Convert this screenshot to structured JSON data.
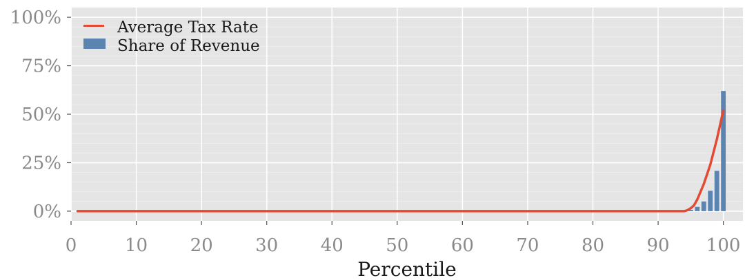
{
  "chart_data": {
    "type": "bar",
    "title": "",
    "xlabel": "Percentile",
    "ylabel": "",
    "xlim": [
      0,
      103
    ],
    "ylim": [
      -5,
      105
    ],
    "x_ticks": [
      0,
      10,
      20,
      30,
      40,
      50,
      60,
      70,
      80,
      90,
      100
    ],
    "x_tick_labels": [
      "0",
      "10",
      "20",
      "30",
      "40",
      "50",
      "60",
      "70",
      "80",
      "90",
      "100"
    ],
    "y_ticks": [
      0,
      25,
      50,
      75,
      100
    ],
    "y_tick_labels": [
      "0%",
      "25%",
      "50%",
      "75%",
      "100%"
    ],
    "grid": true,
    "legend_position": "top-left",
    "series": [
      {
        "name": "Average Tax Rate",
        "type": "line",
        "color": "#E24A33",
        "points": [
          [
            1,
            0
          ],
          [
            94,
            0
          ],
          [
            94.5,
            0.5
          ],
          [
            95,
            1.5
          ],
          [
            95.5,
            3
          ],
          [
            96,
            6
          ],
          [
            97,
            14
          ],
          [
            98,
            24
          ],
          [
            99,
            37
          ],
          [
            100,
            52
          ]
        ]
      },
      {
        "name": "Share of Revenue",
        "type": "bar",
        "color": "#5B84B1",
        "x": [
          95,
          96,
          97,
          98,
          99,
          100
        ],
        "values": [
          0.7,
          2.2,
          5.0,
          10.5,
          20.8,
          62.0
        ]
      }
    ]
  }
}
